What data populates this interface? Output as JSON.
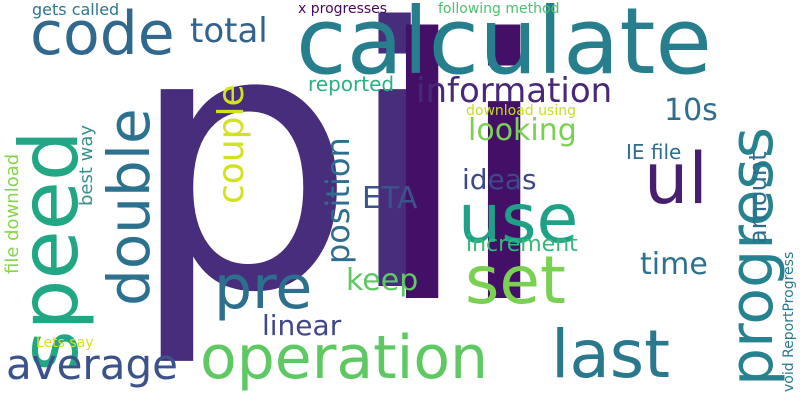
{
  "words": [
    {
      "text": "pi",
      "color": "#472d7b"
    },
    {
      "text": "li",
      "color": "#440f66"
    },
    {
      "text": "calculate",
      "color": "#277f8e"
    },
    {
      "text": "speed",
      "color": "#22a785"
    },
    {
      "text": "operation",
      "color": "#5ec962"
    },
    {
      "text": "use",
      "color": "#1fa187"
    },
    {
      "text": "set",
      "color": "#7ad151"
    },
    {
      "text": "code",
      "color": "#31688e"
    },
    {
      "text": "double",
      "color": "#2c718e"
    },
    {
      "text": "progress",
      "color": "#26828e"
    },
    {
      "text": "last",
      "color": "#2a788e"
    },
    {
      "text": "pre",
      "color": "#2d708e"
    },
    {
      "text": "ul",
      "color": "#481f70"
    },
    {
      "text": "average",
      "color": "#3b528b"
    },
    {
      "text": "information",
      "color": "#482878"
    },
    {
      "text": "couple",
      "color": "#d2e21b"
    },
    {
      "text": "position",
      "color": "#2e6e8e"
    },
    {
      "text": "total",
      "color": "#33638d"
    },
    {
      "text": "looking",
      "color": "#7ad151"
    },
    {
      "text": "ideas",
      "color": "#3e4989"
    },
    {
      "text": "10s",
      "color": "#2e6e8e"
    },
    {
      "text": "ETA",
      "color": "#3b528b"
    },
    {
      "text": "keep",
      "color": "#5ec962"
    },
    {
      "text": "linear",
      "color": "#3f4788"
    },
    {
      "text": "time",
      "color": "#2c728e"
    },
    {
      "text": "amount",
      "color": "#2f6c8e"
    },
    {
      "text": "increment",
      "color": "#35b779"
    },
    {
      "text": "IE file",
      "color": "#2e6e8e"
    },
    {
      "text": "reported",
      "color": "#2ab07f"
    },
    {
      "text": "best way",
      "color": "#3b8f8a"
    },
    {
      "text": "file download",
      "color": "#86d549"
    },
    {
      "text": "gets called",
      "color": "#2b758e"
    },
    {
      "text": "x progresses",
      "color": "#46085c"
    },
    {
      "text": "following method",
      "color": "#4ac16d"
    },
    {
      "text": "download using",
      "color": "#c2df23"
    },
    {
      "text": "Lets say",
      "color": "#d8e219"
    },
    {
      "text": "void ReportProgress",
      "color": "#29798e"
    }
  ]
}
